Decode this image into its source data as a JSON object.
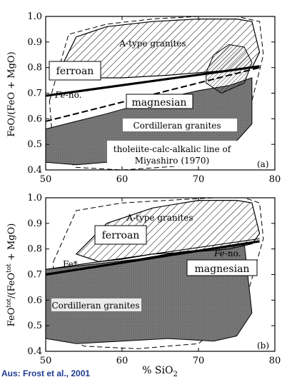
{
  "chart_data": [
    {
      "type": "area",
      "panel_label": "(a)",
      "ylabel": "FeO/(FeO + MgO)",
      "xlim": [
        50,
        80
      ],
      "ylim": [
        0.4,
        1.0
      ],
      "xticks": [
        "50",
        "60",
        "70",
        "80"
      ],
      "yticks": [
        "0.4",
        "0.5",
        "0.6",
        "0.7",
        "0.8",
        "0.9",
        "1.0"
      ],
      "annotations": [
        "A-type granites",
        "ferroan",
        "magnesian",
        "Cordilleran granites",
        "tholeiite-calc-alkalic line of",
        "Miyashiro (1970)"
      ],
      "fe_label_prefix": "Fe",
      "fe_label_suffix": "-no.",
      "fe_number_line": {
        "x": [
          50,
          78
        ],
        "y": [
          0.69,
          0.805
        ]
      },
      "miyashiro_line": {
        "x": [
          50,
          78
        ],
        "y": [
          0.59,
          0.8
        ]
      },
      "regions": {
        "a_type_granites": {
          "x": [
            52,
            54,
            58,
            64,
            70,
            75,
            77,
            78,
            77,
            74,
            70,
            66,
            60,
            55,
            53,
            52
          ],
          "y": [
            0.8,
            0.92,
            0.96,
            0.98,
            0.99,
            0.99,
            0.98,
            0.86,
            0.8,
            0.79,
            0.78,
            0.77,
            0.76,
            0.76,
            0.77,
            0.8
          ]
        },
        "a_type_inner": {
          "x": [
            71,
            72,
            74,
            76,
            77,
            76,
            73,
            71
          ],
          "y": [
            0.78,
            0.85,
            0.89,
            0.88,
            0.82,
            0.74,
            0.7,
            0.74
          ]
        },
        "cordilleran_granites": {
          "x": [
            50,
            54,
            58,
            64,
            70,
            74,
            77,
            77,
            74,
            70,
            64,
            58,
            54,
            50
          ],
          "y": [
            0.56,
            0.59,
            0.62,
            0.67,
            0.71,
            0.73,
            0.76,
            0.58,
            0.48,
            0.45,
            0.44,
            0.43,
            0.42,
            0.43
          ]
        },
        "dashed_envelope": {
          "x": [
            50.5,
            53,
            58,
            64,
            70,
            75,
            78,
            78.5,
            76,
            70,
            60,
            54,
            51,
            50.5
          ],
          "y": [
            0.67,
            0.93,
            0.97,
            0.99,
            1.0,
            1.0,
            0.98,
            0.85,
            0.55,
            0.42,
            0.4,
            0.41,
            0.48,
            0.67
          ]
        }
      }
    },
    {
      "type": "area",
      "panel_label": "(b)",
      "ylabel_main": "FeO",
      "ylabel_sup1": "tot",
      "ylabel_mid": "/(FeO",
      "ylabel_sup2": "tot",
      "ylabel_end": " + MgO)",
      "xlabel": "% SiO",
      "xlabel_sub": "2",
      "xlim": [
        50,
        80
      ],
      "ylim": [
        0.4,
        1.0
      ],
      "xticks": [
        "50",
        "60",
        "70",
        "80"
      ],
      "yticks": [
        "0.4",
        "0.5",
        "0.6",
        "0.7",
        "0.8",
        "0.9",
        "1.0"
      ],
      "annotations": [
        "A-type granites",
        "ferroan",
        "magnesian",
        "Cordilleran granites",
        "Fe*"
      ],
      "fe_label_prefix": "Fe",
      "fe_label_suffix": "-no.",
      "fe_star_line": {
        "x": [
          50,
          78
        ],
        "y": [
          0.72,
          0.84
        ]
      },
      "fe_number_line": {
        "x": [
          50,
          78
        ],
        "y": [
          0.7,
          0.83
        ]
      },
      "regions": {
        "a_type_granites": {
          "x": [
            54,
            58,
            64,
            70,
            75,
            77,
            78,
            77,
            74,
            70,
            64,
            60,
            57,
            54
          ],
          "y": [
            0.78,
            0.9,
            0.96,
            0.99,
            0.99,
            0.98,
            0.86,
            0.82,
            0.8,
            0.79,
            0.78,
            0.76,
            0.75,
            0.78
          ]
        },
        "cordilleran_granites": {
          "x": [
            50,
            56,
            62,
            68,
            72,
            74,
            76,
            77,
            75,
            72,
            66,
            60,
            54,
            50
          ],
          "y": [
            0.72,
            0.74,
            0.76,
            0.79,
            0.8,
            0.81,
            0.82,
            0.55,
            0.46,
            0.44,
            0.45,
            0.44,
            0.43,
            0.45
          ]
        },
        "dashed_envelope": {
          "x": [
            51,
            54,
            60,
            66,
            72,
            76,
            78,
            78.5,
            76,
            70,
            62,
            55,
            51,
            51
          ],
          "y": [
            0.75,
            0.95,
            0.98,
            0.99,
            1.0,
            1.0,
            0.98,
            0.84,
            0.58,
            0.43,
            0.41,
            0.42,
            0.5,
            0.75
          ]
        }
      }
    }
  ],
  "source_credit": "Aus: Frost et al., 2001"
}
